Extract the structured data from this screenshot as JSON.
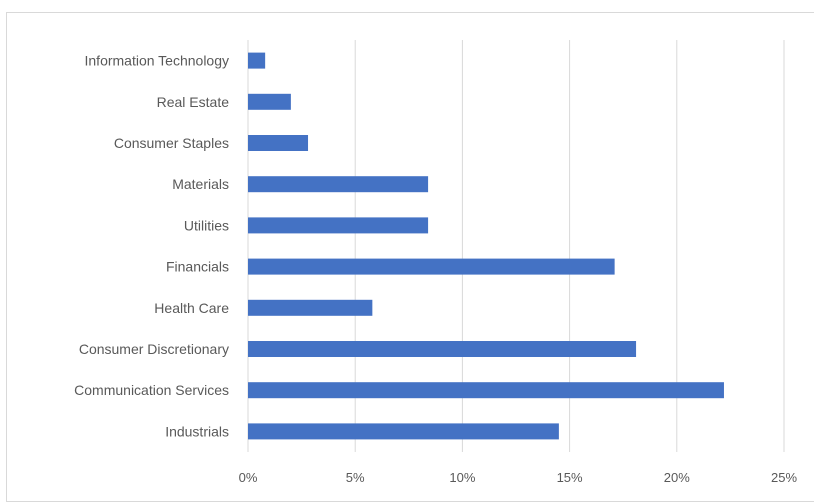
{
  "chart_data": {
    "type": "bar",
    "orientation": "horizontal",
    "title": "",
    "xlabel": "",
    "ylabel": "",
    "categories": [
      "Information Technology",
      "Real Estate",
      "Consumer Staples",
      "Materials",
      "Utilities",
      "Financials",
      "Health Care",
      "Consumer Discretionary",
      "Communication Services",
      "Industrials"
    ],
    "values": [
      0.8,
      2.0,
      2.8,
      8.4,
      8.4,
      17.1,
      5.8,
      18.1,
      22.2,
      14.5
    ],
    "value_unit": "%",
    "xlim": [
      0,
      25
    ],
    "xticks": [
      0,
      5,
      10,
      15,
      20,
      25
    ],
    "xtick_labels": [
      "0%",
      "5%",
      "10%",
      "15%",
      "20%",
      "25%"
    ],
    "grid": "vertical",
    "legend": "none",
    "bar_color": "#4472c4"
  }
}
